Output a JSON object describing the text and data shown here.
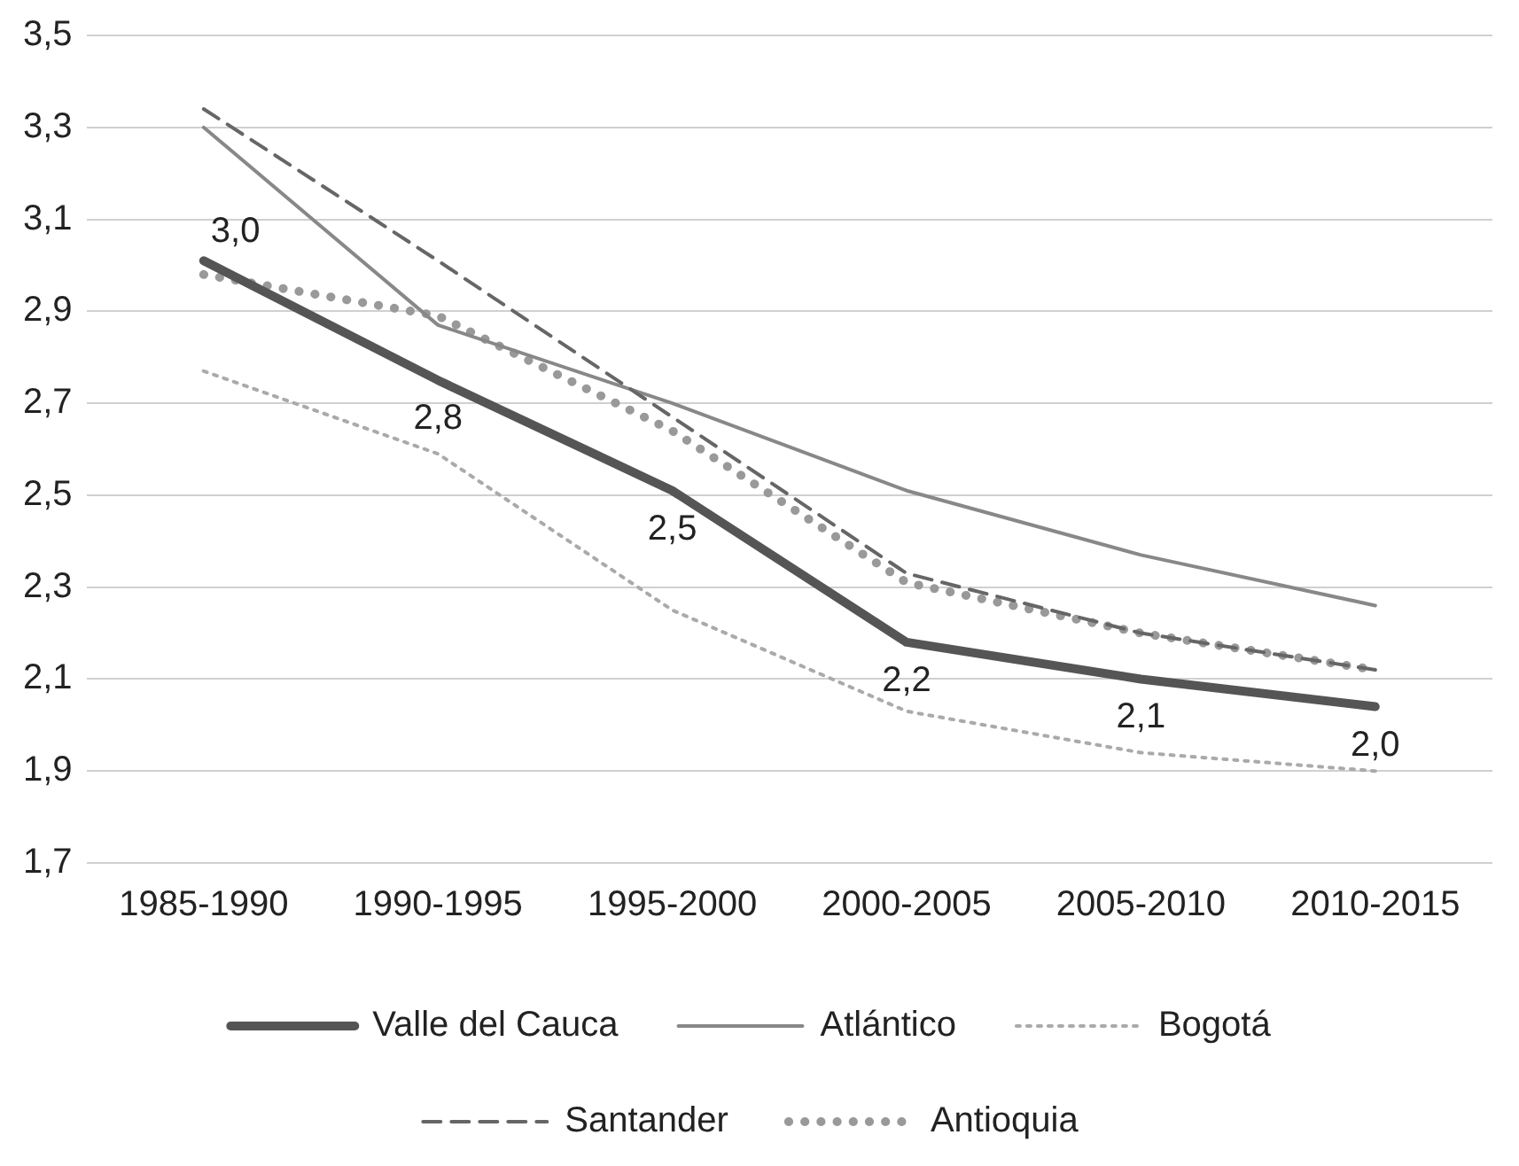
{
  "chart_data": {
    "type": "line",
    "categories": [
      "1985-1990",
      "1990-1995",
      "1995-2000",
      "2000-2005",
      "2005-2010",
      "2010-2015"
    ],
    "series": [
      {
        "name": "Valle del Cauca",
        "color": "#555555",
        "line_style": "solid",
        "values": [
          3.01,
          2.75,
          2.51,
          2.18,
          2.1,
          2.04
        ],
        "value_labels": [
          "3,0",
          "2,8",
          "2,5",
          "2,2",
          "2,1",
          "2,0"
        ]
      },
      {
        "name": "Atlántico",
        "color": "#888888",
        "line_style": "solid",
        "values": [
          3.3,
          2.87,
          2.7,
          2.51,
          2.37,
          2.26
        ]
      },
      {
        "name": "Bogotá",
        "color": "#aaaaaa",
        "line_style": "dotted",
        "values": [
          2.77,
          2.59,
          2.25,
          2.03,
          1.94,
          1.9
        ]
      },
      {
        "name": "Santander",
        "color": "#666666",
        "line_style": "dashed",
        "values": [
          3.34,
          3.01,
          2.67,
          2.33,
          2.2,
          2.12
        ]
      },
      {
        "name": "Antioquia",
        "color": "#999999",
        "line_style": "dotted",
        "values": [
          2.98,
          2.89,
          2.64,
          2.31,
          2.2,
          2.12
        ]
      }
    ],
    "ylim": [
      1.7,
      3.5
    ],
    "yticks": [
      {
        "value": 1.7,
        "label": "1,7"
      },
      {
        "value": 1.9,
        "label": "1,9"
      },
      {
        "value": 2.1,
        "label": "2,1"
      },
      {
        "value": 2.3,
        "label": "2,3"
      },
      {
        "value": 2.5,
        "label": "2,5"
      },
      {
        "value": 2.7,
        "label": "2,7"
      },
      {
        "value": 2.9,
        "label": "2,9"
      },
      {
        "value": 3.1,
        "label": "3,1"
      },
      {
        "value": 3.3,
        "label": "3,3"
      },
      {
        "value": 3.5,
        "label": "3,5"
      }
    ],
    "grid": "y",
    "legend": "bottom",
    "marker": "none"
  }
}
